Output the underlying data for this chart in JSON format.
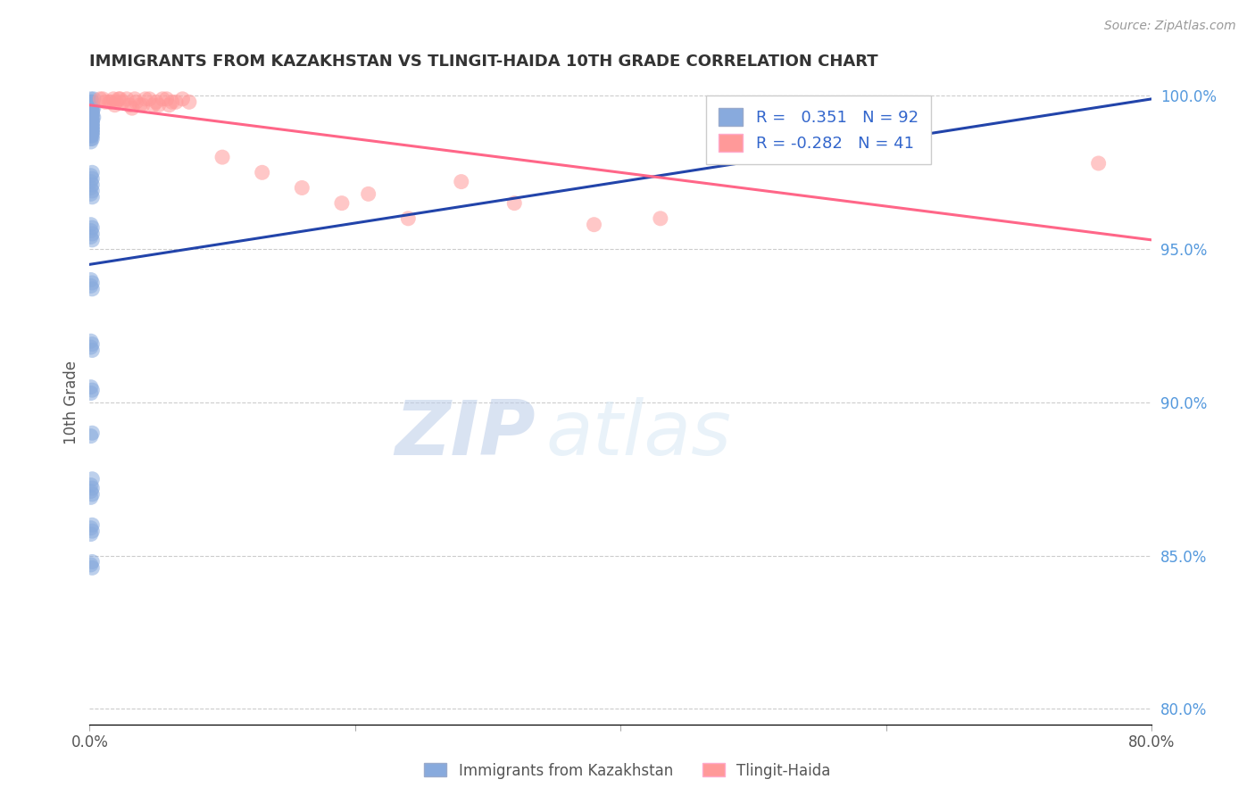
{
  "title": "IMMIGRANTS FROM KAZAKHSTAN VS TLINGIT-HAIDA 10TH GRADE CORRELATION CHART",
  "source": "Source: ZipAtlas.com",
  "xlabel_blue": "Immigrants from Kazakhstan",
  "xlabel_pink": "Tlingit-Haida",
  "ylabel": "10th Grade",
  "xlim": [
    0.0,
    0.8
  ],
  "ylim": [
    0.795,
    1.005
  ],
  "ytick_labels_right": [
    "100.0%",
    "95.0%",
    "90.0%",
    "85.0%",
    "80.0%"
  ],
  "ytick_positions_right": [
    1.0,
    0.95,
    0.9,
    0.85,
    0.8
  ],
  "legend_blue_R": "0.351",
  "legend_blue_N": "92",
  "legend_pink_R": "-0.282",
  "legend_pink_N": "41",
  "blue_color": "#88AADD",
  "pink_color": "#FF9999",
  "blue_line_color": "#2244AA",
  "pink_line_color": "#FF6688",
  "watermark_zip": "ZIP",
  "watermark_atlas": "atlas",
  "background_color": "#FFFFFF",
  "blue_x": [
    0.001,
    0.002,
    0.001,
    0.003,
    0.001,
    0.002,
    0.001,
    0.002,
    0.001,
    0.002,
    0.001,
    0.002,
    0.001,
    0.002,
    0.001,
    0.003,
    0.001,
    0.002,
    0.001,
    0.002,
    0.001,
    0.002,
    0.001,
    0.002,
    0.001,
    0.002,
    0.001,
    0.003,
    0.001,
    0.002,
    0.001,
    0.002,
    0.001,
    0.002,
    0.001,
    0.002,
    0.001,
    0.002,
    0.001,
    0.002,
    0.001,
    0.002,
    0.001,
    0.002,
    0.001,
    0.002,
    0.001,
    0.002,
    0.001,
    0.002,
    0.001,
    0.002,
    0.001,
    0.002,
    0.001,
    0.002,
    0.001,
    0.002,
    0.001,
    0.002,
    0.001,
    0.002,
    0.001,
    0.002,
    0.001,
    0.002,
    0.001,
    0.002,
    0.001,
    0.002,
    0.001,
    0.002,
    0.001,
    0.002,
    0.001,
    0.002,
    0.001,
    0.002,
    0.001,
    0.002,
    0.001,
    0.002,
    0.001,
    0.002,
    0.001,
    0.002,
    0.001,
    0.002,
    0.001,
    0.002,
    0.001,
    0.002
  ],
  "blue_y": [
    0.999,
    0.998,
    0.997,
    0.999,
    0.998,
    0.997,
    0.996,
    0.998,
    0.997,
    0.996,
    0.995,
    0.997,
    0.996,
    0.995,
    0.994,
    0.996,
    0.995,
    0.994,
    0.993,
    0.995,
    0.994,
    0.993,
    0.992,
    0.994,
    0.993,
    0.992,
    0.991,
    0.993,
    0.992,
    0.991,
    0.99,
    0.992,
    0.991,
    0.99,
    0.989,
    0.991,
    0.99,
    0.989,
    0.988,
    0.99,
    0.989,
    0.988,
    0.987,
    0.989,
    0.988,
    0.987,
    0.986,
    0.988,
    0.987,
    0.986,
    0.985,
    0.975,
    0.974,
    0.973,
    0.972,
    0.971,
    0.97,
    0.969,
    0.968,
    0.967,
    0.958,
    0.957,
    0.956,
    0.955,
    0.954,
    0.953,
    0.94,
    0.939,
    0.938,
    0.937,
    0.92,
    0.919,
    0.918,
    0.917,
    0.905,
    0.904,
    0.903,
    0.89,
    0.889,
    0.875,
    0.873,
    0.872,
    0.871,
    0.87,
    0.869,
    0.86,
    0.859,
    0.858,
    0.857,
    0.848,
    0.847,
    0.846
  ],
  "pink_x": [
    0.01,
    0.02,
    0.03,
    0.045,
    0.055,
    0.015,
    0.038,
    0.022,
    0.062,
    0.018,
    0.035,
    0.07,
    0.048,
    0.025,
    0.058,
    0.012,
    0.04,
    0.032,
    0.008,
    0.065,
    0.028,
    0.052,
    0.016,
    0.042,
    0.075,
    0.019,
    0.034,
    0.05,
    0.06,
    0.023,
    0.1,
    0.13,
    0.16,
    0.19,
    0.21,
    0.24,
    0.28,
    0.32,
    0.38,
    0.43,
    0.76
  ],
  "pink_y": [
    0.999,
    0.998,
    0.997,
    0.999,
    0.999,
    0.998,
    0.997,
    0.999,
    0.998,
    0.999,
    0.998,
    0.999,
    0.997,
    0.998,
    0.999,
    0.998,
    0.997,
    0.996,
    0.999,
    0.998,
    0.999,
    0.997,
    0.998,
    0.999,
    0.998,
    0.997,
    0.999,
    0.998,
    0.997,
    0.999,
    0.98,
    0.975,
    0.97,
    0.965,
    0.968,
    0.96,
    0.972,
    0.965,
    0.958,
    0.96,
    0.978
  ],
  "blue_trend_x": [
    0.0,
    0.8
  ],
  "blue_trend_y": [
    0.945,
    0.999
  ],
  "pink_trend_x": [
    0.0,
    0.8
  ],
  "pink_trend_y": [
    0.997,
    0.953
  ]
}
